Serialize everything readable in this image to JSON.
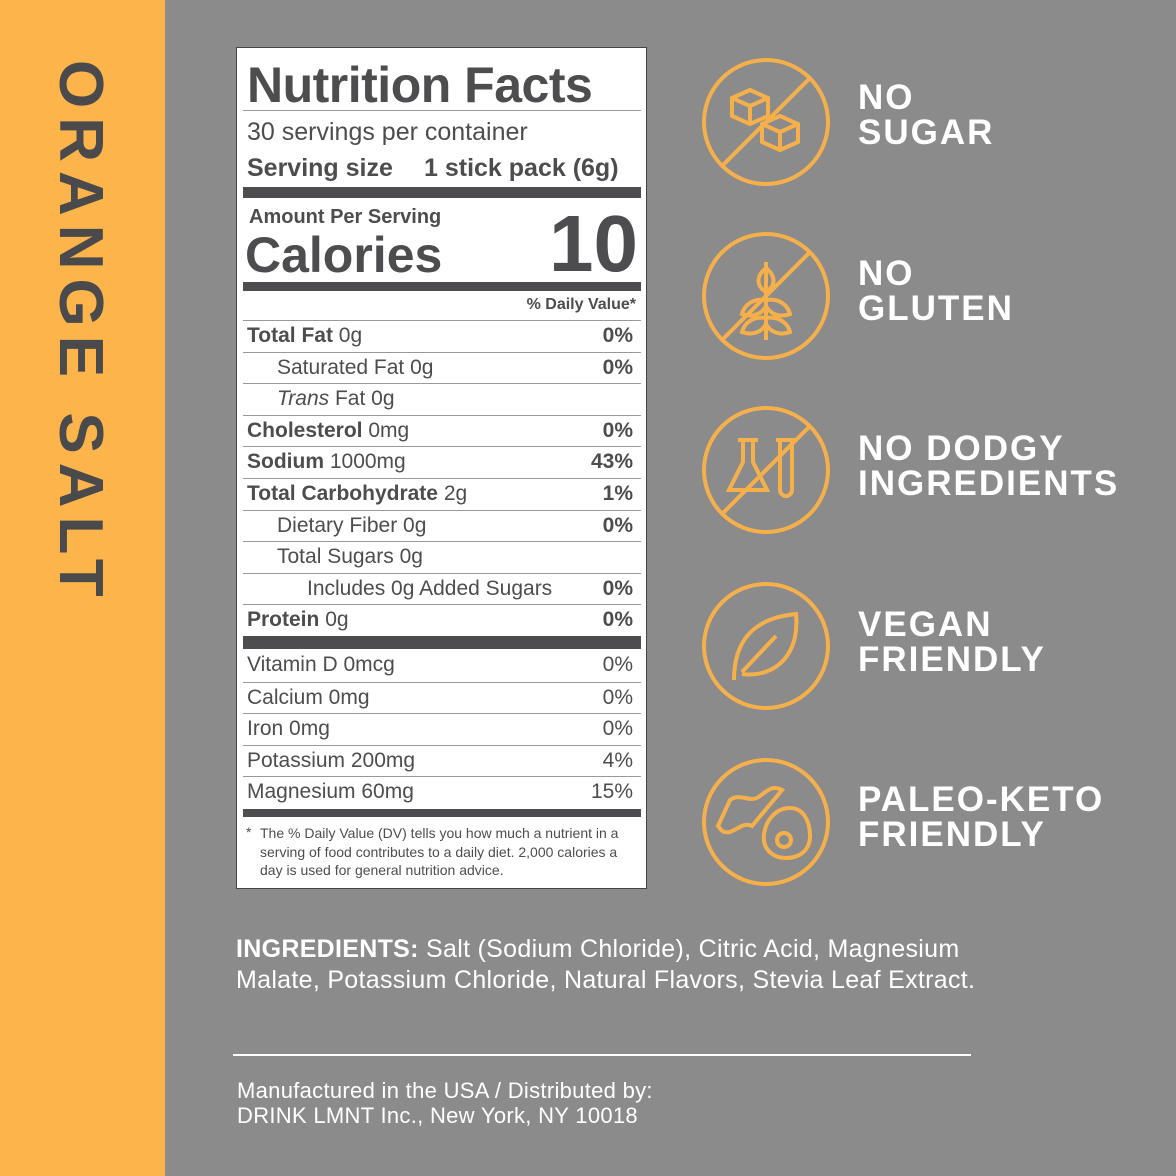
{
  "side_label": "ORANGE SALT",
  "nutrition": {
    "title": "Nutrition Facts",
    "servings": "30 servings per container",
    "serving_size_label": "Serving size",
    "serving_size": "1 stick pack (6g)",
    "amount_per_serving": "Amount Per Serving",
    "calories_label": "Calories",
    "calories": "10",
    "dv_header": "% Daily Value*",
    "rows": [
      {
        "name": "Total Fat",
        "amount": "0g",
        "dv": "0%",
        "indent": 0
      },
      {
        "name": "Saturated Fat",
        "amount": "0g",
        "dv": "0%",
        "indent": 1
      },
      {
        "italic": "Trans",
        "name": "Fat",
        "amount": "0g",
        "indent": 1
      },
      {
        "name": "Cholesterol",
        "amount": "0mg",
        "dv": "0%",
        "indent": 0
      },
      {
        "name": "Sodium",
        "amount": "1000mg",
        "dv": "43%",
        "indent": 0
      },
      {
        "name": "Total Carbohydrate",
        "amount": "2g",
        "dv": "1%",
        "indent": 0
      },
      {
        "name": "Dietary Fiber",
        "amount": "0g",
        "dv": "0%",
        "indent": 1
      },
      {
        "name": "Total Sugars",
        "amount": "0g",
        "indent": 1
      },
      {
        "name": "Includes 0g Added Sugars",
        "dv": "0%",
        "indent": 2
      },
      {
        "name": "Protein",
        "amount": "0g",
        "dv": "0%",
        "indent": 0
      }
    ],
    "vitamins": [
      {
        "name": "Vitamin D 0mcg",
        "dv": "0%"
      },
      {
        "name": "Calcium 0mg",
        "dv": "0%"
      },
      {
        "name": "Iron 0mg",
        "dv": "0%"
      },
      {
        "name": "Potassium 200mg",
        "dv": "4%"
      },
      {
        "name": "Magnesium 60mg",
        "dv": "15%"
      }
    ],
    "footnote_marker": "*",
    "footnote": "The % Daily Value (DV) tells you how much a nutrient in a serving of food contributes to a daily diet. 2,000 calories a day is used for general nutrition advice."
  },
  "badges": [
    {
      "line1": "NO",
      "line2": "SUGAR"
    },
    {
      "line1": "NO",
      "line2": "GLUTEN"
    },
    {
      "line1": "NO DODGY",
      "line2": "INGREDIENTS"
    },
    {
      "line1": "VEGAN",
      "line2": "FRIENDLY"
    },
    {
      "line1": "PALEO-KETO",
      "line2": "FRIENDLY"
    }
  ],
  "ingredients": {
    "label": "INGREDIENTS:",
    "text": "Salt (Sodium Chloride), Citric Acid, Magnesium Malate, Potassium Chloride, Natural Flavors, Stevia Leaf Extract."
  },
  "footer": [
    "Manufactured in the USA / Distributed by:",
    "DRINK LMNT Inc., New York, NY 10018"
  ]
}
